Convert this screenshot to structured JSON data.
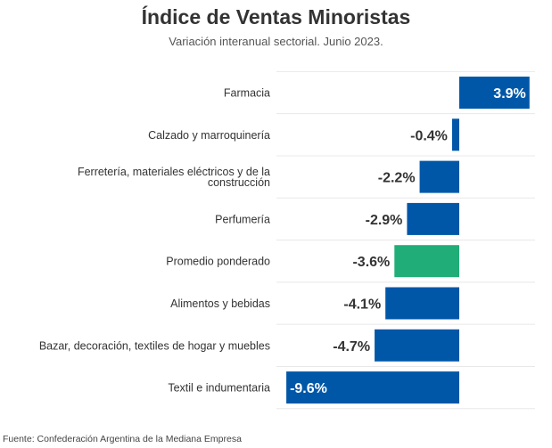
{
  "chart_data": {
    "type": "bar",
    "orientation": "horizontal",
    "title": "Índice de Ventas Minoristas",
    "subtitle": "Variación interanual sectorial. Junio 2023.",
    "source": "Fuente: Confederación Argentina de la Mediana Empresa",
    "unit": "%",
    "categories": [
      "Farmacia",
      "Calzado y marroquinería",
      "Ferretería, materiales eléctricos y de la construcción",
      "Perfumería",
      "Promedio ponderado",
      "Alimentos y bebidas",
      "Bazar, decoración, textiles de hogar y muebles",
      "Textil e indumentaria"
    ],
    "category_lines": [
      [
        "Farmacia"
      ],
      [
        "Calzado y marroquinería"
      ],
      [
        "Ferretería, materiales eléctricos y de la",
        "construcción"
      ],
      [
        "Perfumería"
      ],
      [
        "Promedio ponderado"
      ],
      [
        "Alimentos y bebidas"
      ],
      [
        "Bazar, decoración, textiles de hogar y muebles"
      ],
      [
        "Textil e indumentaria"
      ]
    ],
    "values": [
      3.9,
      -0.4,
      -2.2,
      -2.9,
      -3.6,
      -4.1,
      -4.7,
      -9.6
    ],
    "labels": [
      "3.9%",
      "-0.4%",
      "-2.2%",
      "-2.9%",
      "-3.6%",
      "-4.1%",
      "-4.7%",
      "-9.6%"
    ],
    "highlight": "Promedio ponderado",
    "colors": {
      "default": "#0057a8",
      "highlight": "#20ad78",
      "gridline": "#e8e8e8",
      "label_dark": "#333333",
      "label_light": "#ffffff"
    },
    "xlim": [
      -9.6,
      3.9
    ]
  }
}
